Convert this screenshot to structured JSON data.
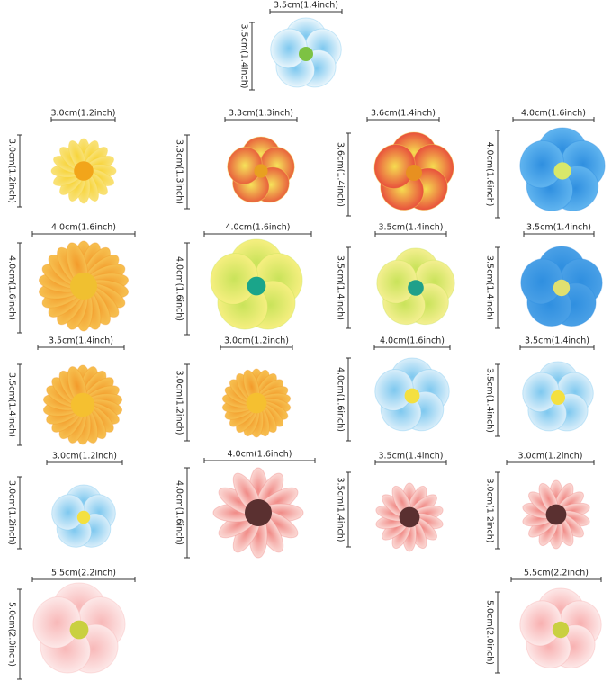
{
  "items": [
    {
      "width": "3.5cm(1.4inch)",
      "height": "3.5cm(1.4inch)"
    },
    {
      "width": "3.0cm(1.2inch)",
      "height": "3.0cm(1.2inch)"
    },
    {
      "width": "3.3cm(1.3inch)",
      "height": "3.3cm(1.3inch)"
    },
    {
      "width": "3.6cm(1.4inch)",
      "height": "3.6cm(1.4inch)"
    },
    {
      "width": "4.0cm(1.6inch)",
      "height": "4.0cm(1.6inch)"
    },
    {
      "width": "4.0cm(1.6inch)",
      "height": "4.0cm(1.6inch)"
    },
    {
      "width": "4.0cm(1.6inch)",
      "height": "4.0cm(1.6inch)"
    },
    {
      "width": "3.5cm(1.4inch)",
      "height": "3.5cm(1.4inch)"
    },
    {
      "width": "3.5cm(1.4inch)",
      "height": "3.5cm(1.4inch)"
    },
    {
      "width": "3.5cm(1.4inch)",
      "height": "3.5cm(1.4inch)"
    },
    {
      "width": "3.0cm(1.2inch)",
      "height": "3.0cm(1.2inch)"
    },
    {
      "width": "4.0cm(1.6inch)",
      "height": "4.0cm(1.6inch)"
    },
    {
      "width": "3.5cm(1.4inch)",
      "height": "3.5cm(1.4inch)"
    },
    {
      "width": "3.0cm(1.2inch)",
      "height": "3.0cm(1.2inch)"
    },
    {
      "width": "4.0cm(1.6inch)",
      "height": "4.0cm(1.6inch)"
    },
    {
      "width": "3.5cm(1.4inch)",
      "height": "3.5cm(1.4inch)"
    },
    {
      "width": "3.0cm(1.2inch)",
      "height": "3.0cm(1.2inch)"
    },
    {
      "width": "5.5cm(2.2inch)",
      "height": "5.0cm(2.0inch)"
    },
    {
      "width": "5.5cm(2.2inch)",
      "height": "5.0cm(2.0inch)"
    }
  ]
}
